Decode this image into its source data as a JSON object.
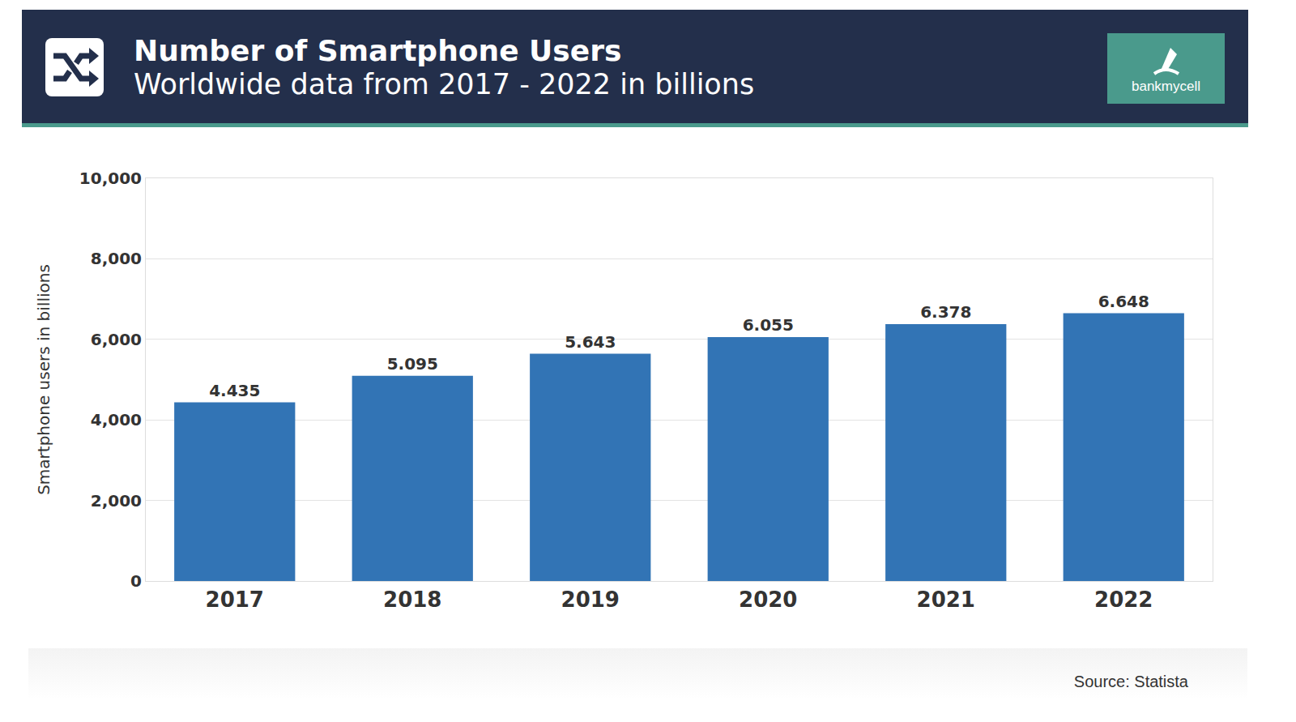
{
  "chart_data": {
    "type": "bar",
    "title": "Number of Smartphone Users",
    "subtitle": "Worldwide data from 2017 - 2022 in billions",
    "y_label": "Smartphone users in billions",
    "categories": [
      "2017",
      "2018",
      "2019",
      "2020",
      "2021",
      "2022"
    ],
    "values": [
      4435,
      5095,
      5643,
      6055,
      6378,
      6648
    ],
    "value_labels": [
      "4.435",
      "5.095",
      "5.643",
      "6.055",
      "6.378",
      "6.648"
    ],
    "color": "#3274b5",
    "ylim": [
      0,
      10000
    ],
    "yticks": [
      0,
      {
        "value": 2000,
        "label": "2,000"
      },
      {
        "value": 4000,
        "label": "4,000"
      },
      {
        "value": 6000,
        "label": "6,000"
      },
      {
        "value": 8000,
        "label": "8,000"
      },
      {
        "value": 10000,
        "label": "10,000"
      }
    ],
    "grid": true,
    "data_labels": true
  },
  "logo": "bankmycell",
  "source": "Source: Statista"
}
